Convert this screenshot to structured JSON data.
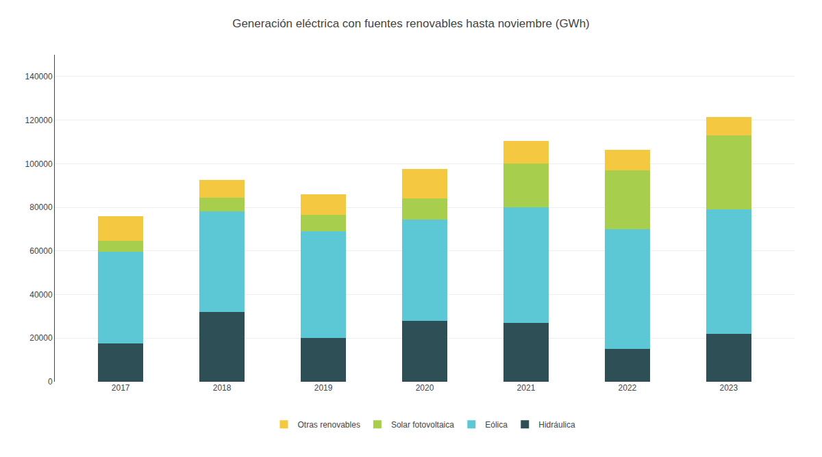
{
  "chart_data": {
    "type": "bar",
    "stacked": true,
    "title": "Generación eléctrica con fuentes renovables hasta noviembre (GWh)",
    "categories": [
      "2017",
      "2018",
      "2019",
      "2020",
      "2021",
      "2022",
      "2023"
    ],
    "series": [
      {
        "name": "Hidráulica",
        "color": "#2e4f56",
        "values": [
          17500,
          32000,
          20000,
          28000,
          27000,
          15000,
          22000
        ]
      },
      {
        "name": "Eólica",
        "color": "#5cc8d6",
        "values": [
          42000,
          46000,
          49000,
          46500,
          53000,
          55000,
          57000
        ]
      },
      {
        "name": "Solar fotovoltaica",
        "color": "#a8ce4e",
        "values": [
          5000,
          6500,
          7500,
          9500,
          20000,
          27000,
          34000
        ]
      },
      {
        "name": "Otras renovables",
        "color": "#f5c842",
        "values": [
          11500,
          8000,
          9500,
          13500,
          10500,
          9500,
          8500
        ]
      }
    ],
    "ylim": [
      0,
      150000
    ],
    "yticks": [
      0,
      20000,
      40000,
      60000,
      80000,
      100000,
      120000,
      140000
    ],
    "grid": true,
    "legend": "bottom"
  }
}
